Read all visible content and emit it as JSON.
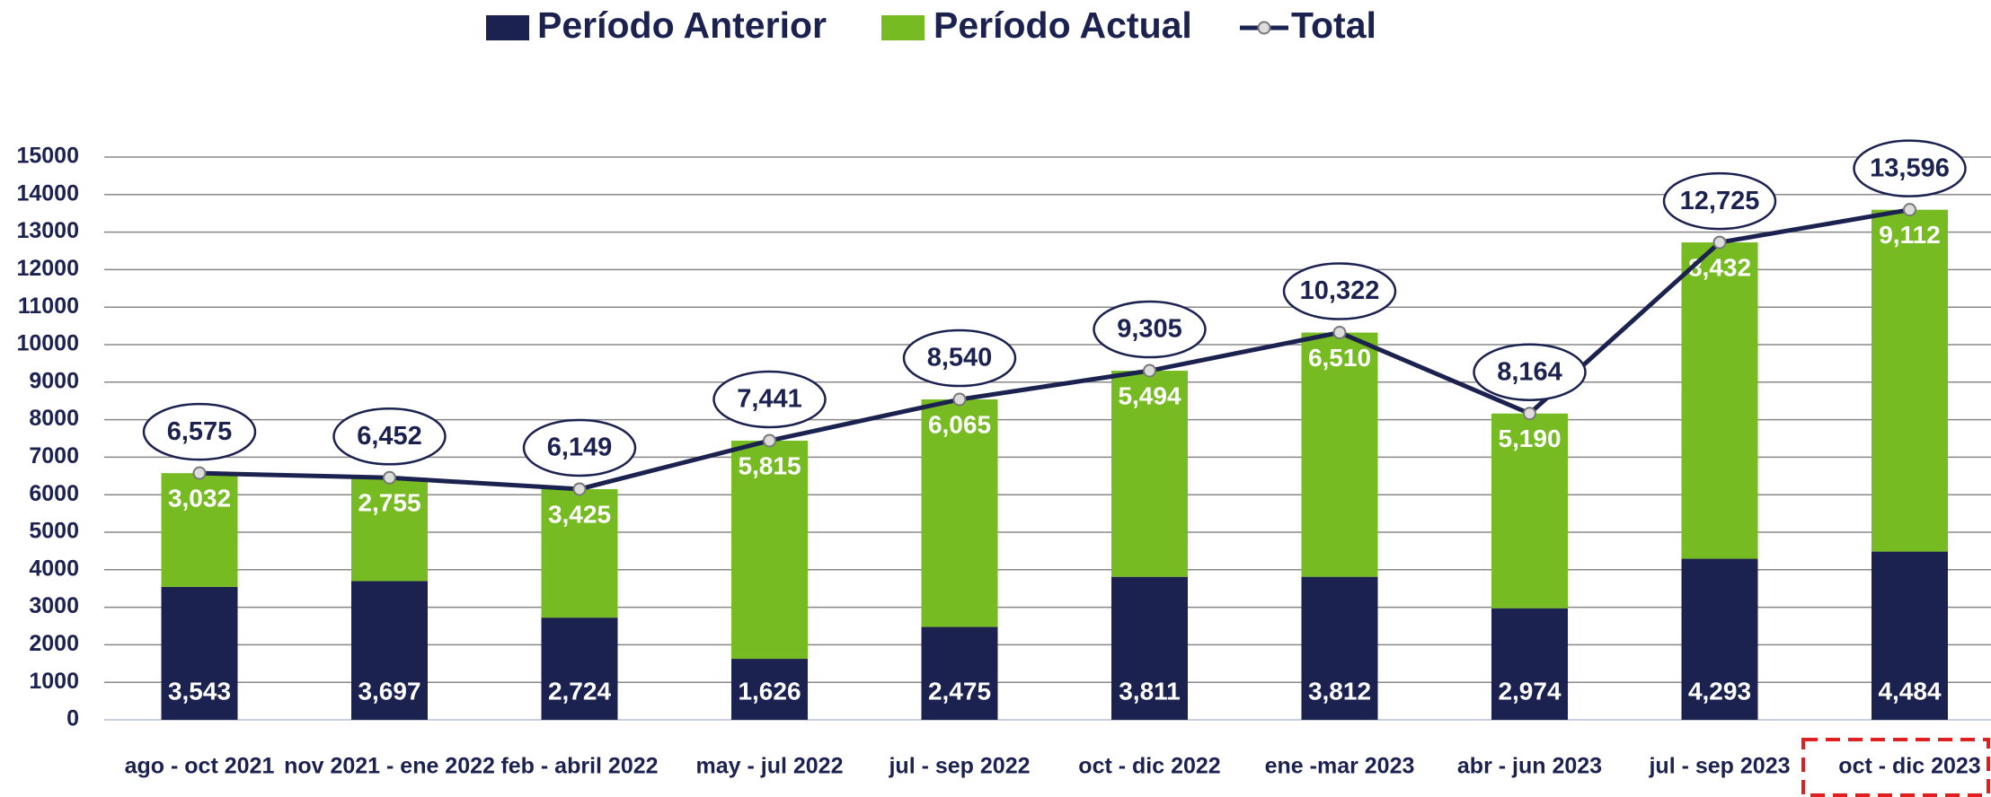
{
  "chart_data": {
    "type": "bar",
    "stacked": true,
    "grid": true,
    "categories": [
      "ago - oct 2021",
      "nov 2021 - ene 2022",
      "feb - abril 2022",
      "may - jul 2022",
      "jul - sep 2022",
      "oct - dic 2022",
      "ene -mar 2023",
      "abr - jun 2023",
      "jul - sep 2023",
      "oct - dic 2023"
    ],
    "series": [
      {
        "name": "Período Anterior",
        "type": "bar",
        "color": "#1b2250",
        "values": [
          3543,
          3697,
          2724,
          1626,
          2475,
          3811,
          3812,
          2974,
          4293,
          4484
        ],
        "value_labels": [
          "3,543",
          "3,697",
          "2,724",
          "1,626",
          "2,475",
          "3,811",
          "3,812",
          "2,974",
          "4,293",
          "4,484"
        ]
      },
      {
        "name": "Período Actual",
        "type": "bar",
        "color": "#77bb22",
        "values": [
          3032,
          2755,
          3425,
          5815,
          6065,
          5494,
          6510,
          5190,
          8432,
          9112
        ],
        "value_labels": [
          "3,032",
          "2,755",
          "3,425",
          "5,815",
          "6,065",
          "5,494",
          "6,510",
          "5,190",
          "8,432",
          "9,112"
        ]
      },
      {
        "name": "Total",
        "type": "line",
        "color": "#1b2250",
        "values": [
          6575,
          6452,
          6149,
          7441,
          8540,
          9305,
          10322,
          8164,
          12725,
          13596
        ],
        "value_labels": [
          "6,575",
          "6,452",
          "6,149",
          "7,441",
          "8,540",
          "9,305",
          "10,322",
          "8,164",
          "12,725",
          "13,596"
        ]
      }
    ],
    "ylim": [
      0,
      15000
    ],
    "yticks": [
      0,
      1000,
      2000,
      3000,
      4000,
      5000,
      6000,
      7000,
      8000,
      9000,
      10000,
      11000,
      12000,
      13000,
      14000,
      15000
    ]
  }
}
